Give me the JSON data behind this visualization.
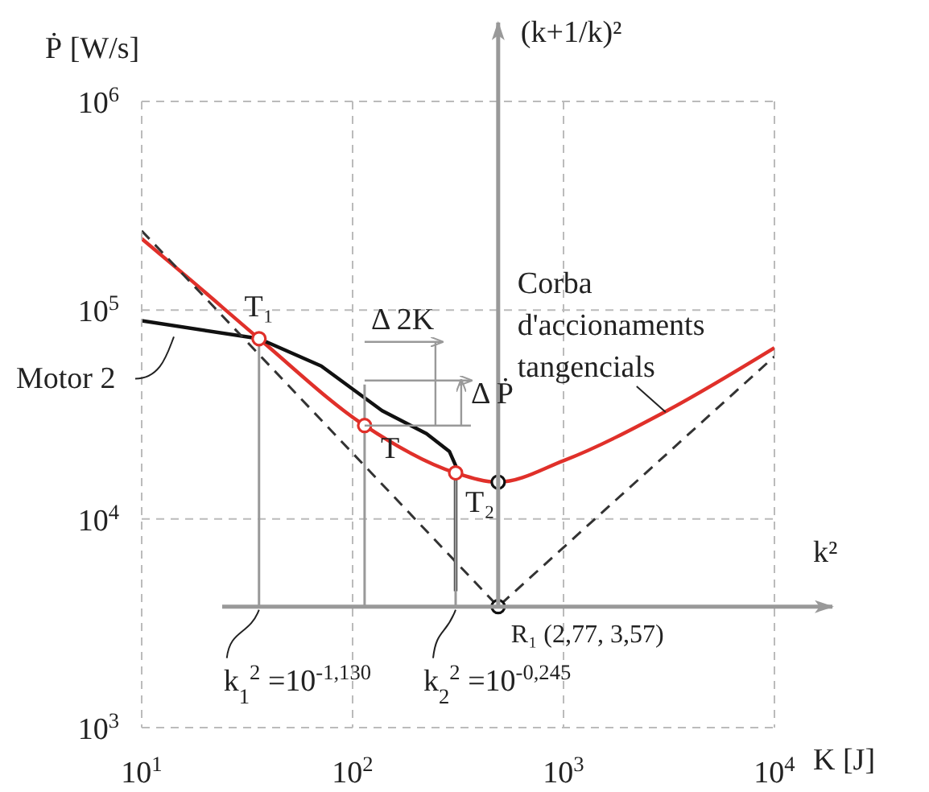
{
  "chart_data": {
    "type": "line",
    "xlabel": "K [J]",
    "ylabel": "Ṗ [W/s]",
    "log": "xy",
    "grid": true,
    "ref_lines": [
      {
        "axis": "y",
        "value": 3800,
        "label": "k²",
        "color": "#999999"
      },
      {
        "axis": "x",
        "value": 490,
        "label": "(k+1/k)²",
        "color": "#999999"
      }
    ],
    "xlim": [
      10,
      10000
    ],
    "ylim": [
      1000,
      1000000
    ],
    "xticks": [
      {
        "value": 10,
        "label": "10$^{1}$"
      },
      {
        "value": 100,
        "label": "10$^{2}$"
      },
      {
        "value": 1000,
        "label": "10$^{3}$"
      },
      {
        "value": 10000,
        "label": "10$^{4}$"
      }
    ],
    "yticks": [
      {
        "value": 1000,
        "label": "10$^{3}$"
      },
      {
        "value": 10000,
        "label": "10$^{4}$"
      },
      {
        "value": 100000,
        "label": "10$^{5}$"
      },
      {
        "value": 1000000,
        "label": "10$^{6}$"
      }
    ],
    "series": [
      {
        "name": "Corba d'accionaments tangencials",
        "color": "#e0302a",
        "x": [
          10,
          17,
          36,
          114,
          308,
          490,
          1000,
          3100,
          10000
        ],
        "values": [
          220000,
          140000,
          73000,
          28000,
          16600,
          15000,
          19000,
          33000,
          66000
        ]
      },
      {
        "name": "Motor 2",
        "color": "#111111",
        "x": [
          10,
          36,
          71,
          138,
          224,
          288,
          308,
          308
        ],
        "values": [
          89000,
          73000,
          54000,
          33000,
          25600,
          21000,
          18000,
          4500
        ]
      },
      {
        "color": "#333333",
        "line_style": "dashed",
        "x": [
          10,
          490,
          10000
        ],
        "values": [
          240000,
          3800,
          60000
        ]
      },
      {
        "color": "#999999",
        "x": [
          36,
          36
        ],
        "values": [
          3800,
          73000
        ]
      },
      {
        "color": "#999999",
        "x": [
          114,
          114
        ],
        "values": [
          3800,
          44000
        ]
      },
      {
        "color": "#999999",
        "x": [
          308,
          308
        ],
        "values": [
          3800,
          16600
        ]
      },
      {
        "type": "scatter",
        "marker": "circle",
        "color": "#e0302a",
        "x": [
          36,
          114,
          308
        ],
        "values": [
          73000,
          28000,
          16600
        ]
      },
      {
        "type": "scatter",
        "marker": "circle",
        "color": "#111111",
        "x": [
          490,
          490
        ],
        "values": [
          15000,
          3800
        ]
      }
    ],
    "annotations": [
      {
        "text": "T₁",
        "x": 36,
        "y": 73000
      },
      {
        "text": "T",
        "x": 114,
        "y": 28000
      },
      {
        "text": "T₂",
        "x": 308,
        "y": 16600
      },
      {
        "text": "R₁ (2,77, 3,57)",
        "x": 490,
        "y": 3800
      },
      {
        "text": "k$_{1}$$^{2}$ =10$^{-1,130}$",
        "x": 36,
        "y": 3800
      },
      {
        "text": "k$_{2}$$^{2}$ =10$^{-0,245}$",
        "x": 308,
        "y": 3800
      },
      {
        "text": "Δ 2K",
        "x": 114,
        "y": 28000
      },
      {
        "text": "Δ Ṗ",
        "x": 114,
        "y": 28000
      }
    ]
  }
}
